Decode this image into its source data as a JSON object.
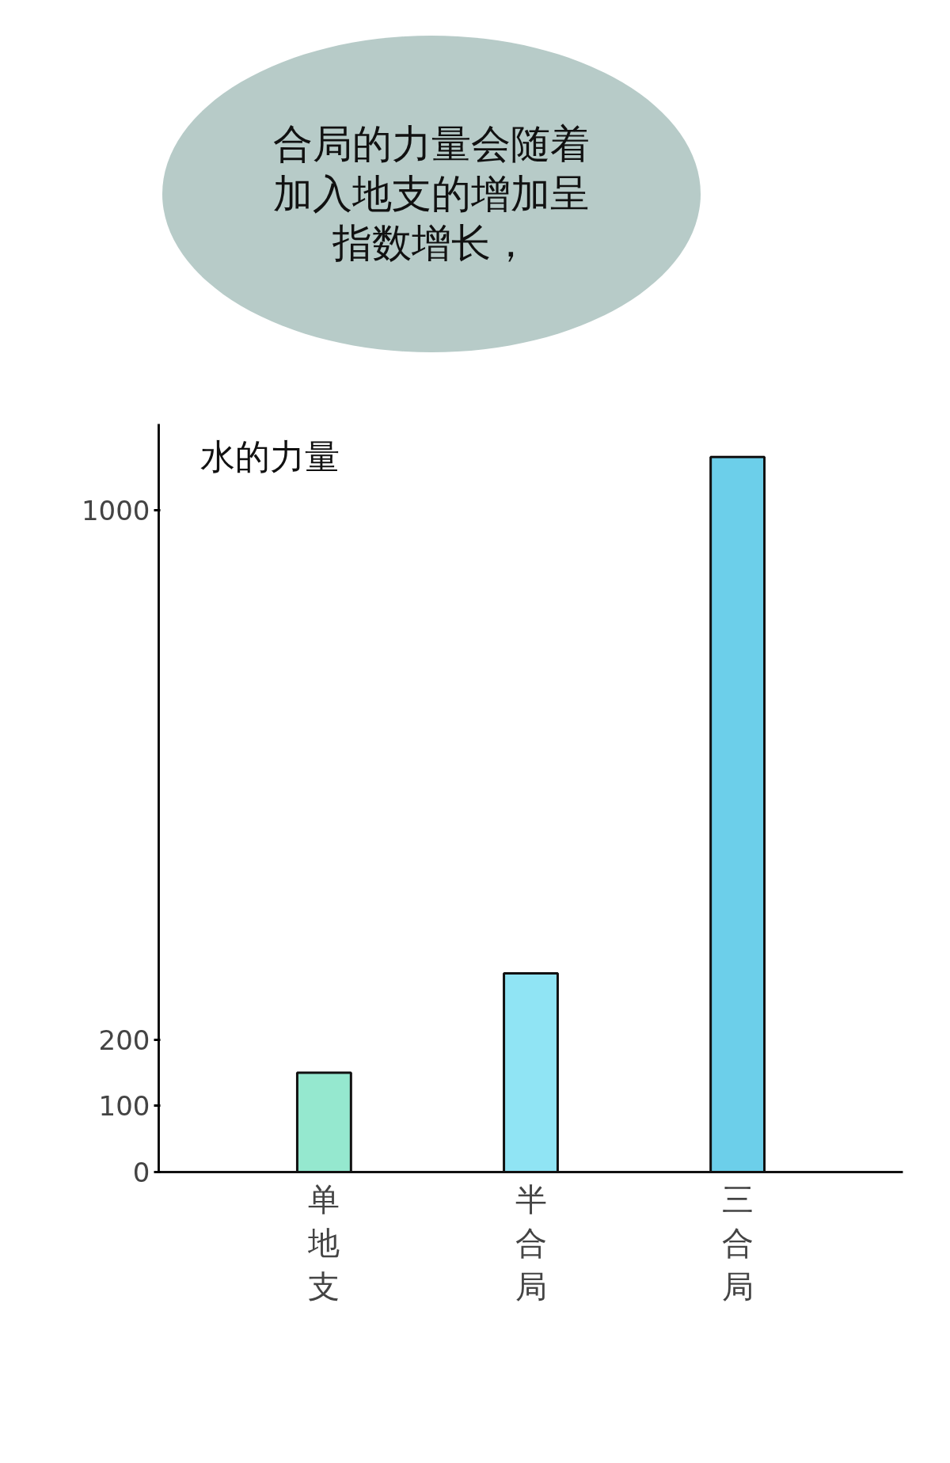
{
  "chart_data": {
    "type": "bar",
    "title": "合局的力量会随着加入地支的增加呈指数增长，",
    "annotations": [
      "水的力量"
    ],
    "categories": [
      "单地支",
      "半合局",
      "三合局"
    ],
    "values": [
      150,
      300,
      1080
    ],
    "colors": [
      "#95e8cf",
      "#90e4f4",
      "#6ccfea"
    ],
    "ylim": [
      0,
      1130
    ],
    "yticks": [
      0,
      100,
      200,
      1000
    ],
    "grid": false
  }
}
